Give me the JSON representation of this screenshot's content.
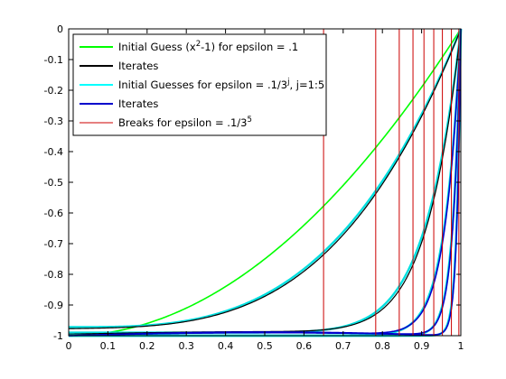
{
  "chart_data": {
    "type": "line",
    "xlim": [
      0,
      1
    ],
    "ylim": [
      -1,
      0
    ],
    "xticks": [
      "0",
      "0.1",
      "0.2",
      "0.3",
      "0.4",
      "0.5",
      "0.6",
      "0.7",
      "0.8",
      "0.9",
      "1"
    ],
    "yticks": [
      "0",
      "-0.1",
      "-0.2",
      "-0.3",
      "-0.4",
      "-0.5",
      "-0.6",
      "-0.7",
      "-0.8",
      "-0.9",
      "-1"
    ],
    "legend_position": "top-left",
    "grid": false,
    "legend": [
      {
        "text": "Initial Guess (x",
        "sup": "2",
        "text2": "-1) for epsilon = .1",
        "color": "#00ff00",
        "width": 2
      },
      {
        "text": "Iterates",
        "sup": "",
        "text2": "",
        "color": "#000000",
        "width": 2
      },
      {
        "text": "Initial Guesses for epsilon = .1/3",
        "sup": "j",
        "text2": ", j=1:5",
        "color": "#00ffff",
        "width": 2
      },
      {
        "text": "Iterates",
        "sup": "",
        "text2": "",
        "color": "#0000cc",
        "width": 2
      },
      {
        "text": "Breaks for epsilon = .1/3",
        "sup": "5",
        "text2": "",
        "color": "#cc0000",
        "width": 1
      }
    ],
    "breaks": [
      0.65,
      0.783,
      0.843,
      0.878,
      0.906,
      0.931,
      0.953,
      0.976,
      0.995
    ],
    "series": [
      {
        "color": "#00ff00",
        "width": 1.6,
        "y0": -1.0,
        "k": 2,
        "x0": 0,
        "spread": 0
      },
      {
        "color": "#00e0e0",
        "width": 2.4,
        "y0": -0.972,
        "k": 3.2,
        "x0": 0,
        "spread": 0
      },
      {
        "color": "#000000",
        "width": 1.2,
        "y0": -0.977,
        "k": 3.3,
        "x0": 0,
        "spread": 0.006
      },
      {
        "color": "#00e0e0",
        "width": 2.4,
        "y0": -0.99,
        "k": 11,
        "x0": 0,
        "spread": 0
      },
      {
        "color": "#000000",
        "width": 1.2,
        "y0": -0.995,
        "k": 11.5,
        "x0": 0,
        "spread": 0.008
      },
      {
        "color": "#00e0e0",
        "width": 2.4,
        "y0": -1.0,
        "k": 24,
        "x0": 0,
        "spread": 0
      },
      {
        "color": "#0000cc",
        "width": 1.6,
        "y0": -1.0,
        "k": 25,
        "x0": 0,
        "spread": 0.01
      },
      {
        "color": "#00e0e0",
        "width": 2.4,
        "y0": -1.0,
        "k": 48,
        "x0": 0,
        "spread": 0
      },
      {
        "color": "#0000cc",
        "width": 1.6,
        "y0": -1.0,
        "k": 50,
        "x0": 0,
        "spread": 0.012
      },
      {
        "color": "#00e0e0",
        "width": 2.4,
        "y0": -1.0,
        "k": 95,
        "x0": 0,
        "spread": 0
      },
      {
        "color": "#0000cc",
        "width": 1.6,
        "y0": -1.0,
        "k": 100,
        "x0": 0,
        "spread": 0.01
      }
    ]
  }
}
